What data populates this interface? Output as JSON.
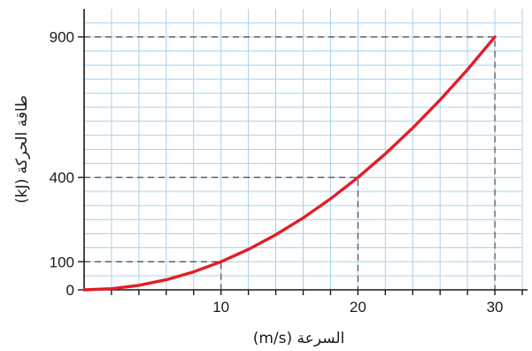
{
  "chart_data": {
    "type": "line",
    "xlabel": "السرعة (m/s)",
    "ylabel": "طاقة الحركة (kJ)",
    "xlim": [
      0,
      32
    ],
    "ylim": [
      0,
      1000
    ],
    "x_ticks": [
      10,
      20,
      30
    ],
    "y_ticks": [
      0,
      100,
      400,
      900
    ],
    "grid": true,
    "series": [
      {
        "x": [
          0,
          2,
          4,
          6,
          8,
          10,
          12,
          14,
          16,
          18,
          20,
          22,
          24,
          26,
          28,
          30
        ],
        "y": [
          0,
          4,
          16,
          36,
          64,
          100,
          144,
          196,
          256,
          324,
          400,
          484,
          576,
          676,
          784,
          900
        ]
      }
    ],
    "guides": [
      {
        "x": 10,
        "y": 100
      },
      {
        "x": 20,
        "y": 400
      },
      {
        "x": 30,
        "y": 900
      }
    ],
    "colors": {
      "line": "#e31e24",
      "grid": "#a9d2ee",
      "axis": "#1a1a1a",
      "guide": "#555555"
    }
  }
}
